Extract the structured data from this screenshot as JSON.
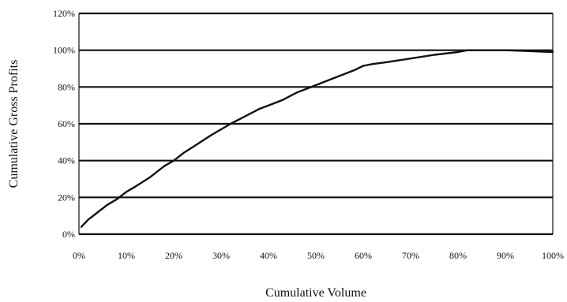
{
  "chart_data": {
    "type": "line",
    "xlabel": "Cumulative Volume",
    "ylabel": "Cumulative Gross Profits",
    "xlim": [
      0,
      100
    ],
    "ylim": [
      0,
      120
    ],
    "x_tick_labels": [
      "0%",
      "10%",
      "20%",
      "30%",
      "40%",
      "50%",
      "60%",
      "70%",
      "80%",
      "90%",
      "100%"
    ],
    "y_tick_labels": [
      "0%",
      "20%",
      "40%",
      "60%",
      "80%",
      "100%",
      "120%"
    ],
    "grid": "horizontal",
    "legend": "none",
    "line_color": "#111111",
    "series": [
      {
        "x": [
          0.5,
          2,
          4,
          6,
          8,
          10,
          12,
          15,
          18,
          20,
          22,
          25,
          28,
          30,
          32,
          35,
          38,
          40,
          43,
          46,
          48,
          50,
          52,
          55,
          58,
          60,
          62,
          65,
          70,
          75,
          80,
          82,
          85,
          90,
          95,
          100
        ],
        "values": [
          4,
          8,
          12,
          16,
          19,
          23,
          26,
          31,
          37,
          40,
          44,
          49,
          54,
          57,
          60,
          64,
          68,
          70,
          73,
          77,
          79,
          81,
          83,
          86,
          89,
          91.5,
          92.5,
          93.5,
          95.5,
          97.5,
          99,
          100,
          100,
          100,
          99.5,
          99
        ]
      }
    ]
  }
}
